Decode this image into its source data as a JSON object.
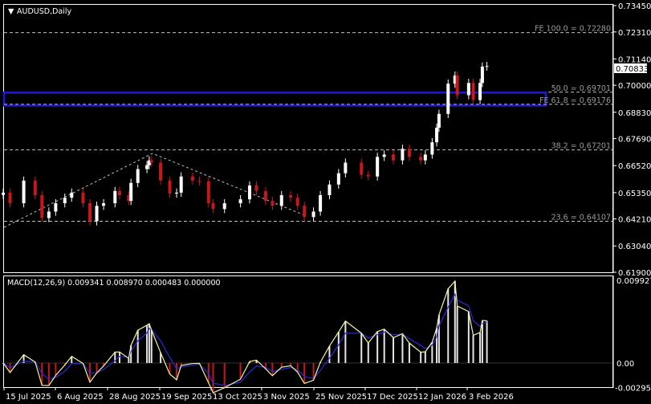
{
  "window": {
    "title": "AUDUSD,Daily"
  },
  "colors": {
    "bull": "#ffffff",
    "bear": "#c8171c",
    "zone": "#1a1ad8",
    "macd_line": "#f4f49a",
    "signal_line": "#2a2ae0",
    "fib": "#bfbfbf",
    "background": "#000000"
  },
  "current_price": "0.70833",
  "price_axis": [
    "0.73450",
    "0.72310",
    "0.71140",
    "0.70000",
    "0.68830",
    "0.67690",
    "0.66520",
    "0.65350",
    "0.64210",
    "0.63040",
    "0.61900"
  ],
  "date_axis": [
    "15 Jul 2025",
    "6 Aug 2025",
    "28 Aug 2025",
    "19 Sep 2025",
    "13 Oct 2025",
    "3 Nov 2025",
    "25 Nov 2025",
    "17 Dec 2025",
    "12 Jan 2026",
    "3 Feb 2026"
  ],
  "fib_levels": [
    {
      "label": "FE 100.0 = 0.72280",
      "value": 0.7228
    },
    {
      "label": "50.0 = 0.69701",
      "value": 0.69701
    },
    {
      "label": "FE 61.8 = 0.69176",
      "value": 0.69176
    },
    {
      "label": "38.2 = 0.67201",
      "value": 0.67201
    },
    {
      "label": "23.6 = 0.64107",
      "value": 0.64107
    }
  ],
  "zone": {
    "top": 0.6968,
    "bottom": 0.6912
  },
  "macd": {
    "label": "MACD(12,26,9) 0.009341 0.008970 0.000483 0.000000",
    "axis": [
      "0.009927",
      "0.00",
      "-0.002957"
    ]
  },
  "chart_data": {
    "type": "candlestick",
    "title": "AUDUSD,Daily",
    "ylim": [
      0.619,
      0.7345
    ],
    "points": [
      [
        "2025-07-15",
        0.6535
      ],
      [
        "2025-07-18",
        0.6489
      ],
      [
        "2025-07-24",
        0.6587
      ],
      [
        "2025-07-29",
        0.6524
      ],
      [
        "2025-08-01",
        0.6425
      ],
      [
        "2025-08-04",
        0.6453
      ],
      [
        "2025-08-07",
        0.6489
      ],
      [
        "2025-08-11",
        0.6513
      ],
      [
        "2025-08-14",
        0.6535
      ],
      [
        "2025-08-19",
        0.6489
      ],
      [
        "2025-08-22",
        0.6411
      ],
      [
        "2025-08-25",
        0.6478
      ],
      [
        "2025-08-28",
        0.6489
      ],
      [
        "2025-09-02",
        0.6542
      ],
      [
        "2025-09-04",
        0.6524
      ],
      [
        "2025-09-08",
        0.6499
      ],
      [
        "2025-09-09",
        0.6577
      ],
      [
        "2025-09-12",
        0.6637
      ],
      [
        "2025-09-16",
        0.6654
      ],
      [
        "2025-09-17",
        0.6675
      ],
      [
        "2025-09-18",
        0.6665
      ],
      [
        "2025-09-22",
        0.6587
      ],
      [
        "2025-09-26",
        0.6531
      ],
      [
        "2025-09-29",
        0.6535
      ],
      [
        "2025-10-01",
        0.6605
      ],
      [
        "2025-10-06",
        0.6587
      ],
      [
        "2025-10-09",
        0.6584
      ],
      [
        "2025-10-13",
        0.6489
      ],
      [
        "2025-10-15",
        0.6464
      ],
      [
        "2025-10-20",
        0.6489
      ],
      [
        "2025-10-27",
        0.6506
      ],
      [
        "2025-10-31",
        0.6566
      ],
      [
        "2025-11-03",
        0.6542
      ],
      [
        "2025-11-07",
        0.6499
      ],
      [
        "2025-11-10",
        0.6478
      ],
      [
        "2025-11-14",
        0.6524
      ],
      [
        "2025-11-18",
        0.6513
      ],
      [
        "2025-11-21",
        0.6478
      ],
      [
        "2025-11-24",
        0.6429
      ],
      [
        "2025-11-28",
        0.6453
      ],
      [
        "2025-12-01",
        0.6524
      ],
      [
        "2025-12-05",
        0.657
      ],
      [
        "2025-12-09",
        0.6619
      ],
      [
        "2025-12-12",
        0.6665
      ],
      [
        "2025-12-19",
        0.6612
      ],
      [
        "2025-12-22",
        0.6605
      ],
      [
        "2025-12-26",
        0.669
      ],
      [
        "2025-12-29",
        0.67
      ],
      [
        "2026-01-02",
        0.6675
      ],
      [
        "2026-01-06",
        0.6725
      ],
      [
        "2026-01-09",
        0.669
      ],
      [
        "2026-01-14",
        0.6675
      ],
      [
        "2026-01-16",
        0.67
      ],
      [
        "2026-01-19",
        0.6753
      ],
      [
        "2026-01-21",
        0.6816
      ],
      [
        "2026-01-22",
        0.6876
      ],
      [
        "2026-01-26",
        0.7007
      ],
      [
        "2026-01-29",
        0.7042
      ],
      [
        "2026-01-30",
        0.6957
      ],
      [
        "2026-02-04",
        0.701
      ],
      [
        "2026-02-06",
        0.6936
      ],
      [
        "2026-02-09",
        0.701
      ],
      [
        "2026-02-10",
        0.7081
      ],
      [
        "2026-02-12",
        0.70833
      ]
    ]
  }
}
